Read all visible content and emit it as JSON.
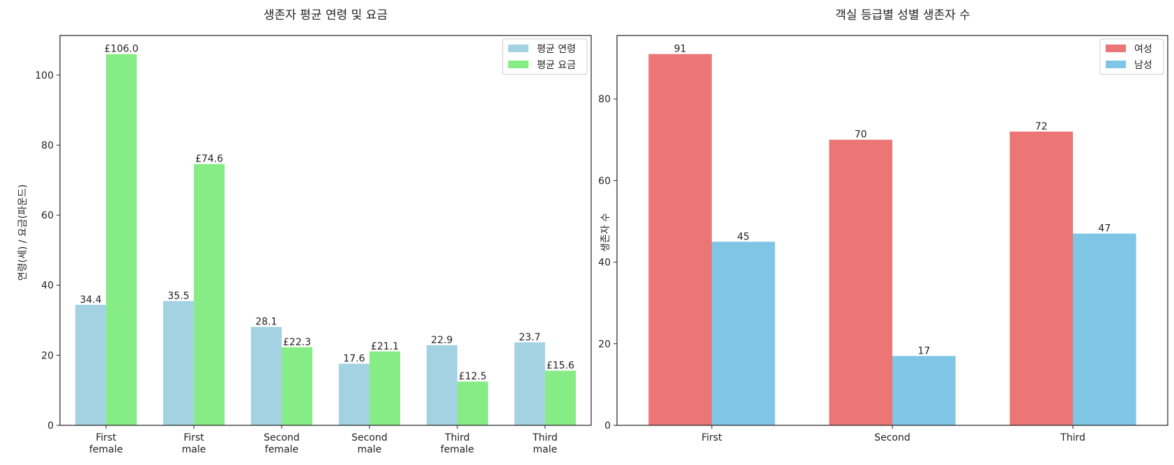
{
  "colors": {
    "age": "#a3d2e2",
    "fare": "#86ec86",
    "female": "#ec7575",
    "male": "#7fc6e6"
  },
  "chart_data": [
    {
      "type": "bar",
      "title": "생존자 평균 연령 및 요금",
      "xlabel": "",
      "ylabel": "연령(세) / 요금(파운드)",
      "ylim": [
        0,
        111.3
      ],
      "yticks": [
        0,
        20,
        40,
        60,
        80,
        100
      ],
      "categories": [
        "First\nfemale",
        "First\nmale",
        "Second\nfemale",
        "Second\nmale",
        "Third\nfemale",
        "Third\nmale"
      ],
      "series": [
        {
          "name": "평균 연령",
          "values": [
            34.4,
            35.5,
            28.1,
            17.6,
            22.9,
            23.7
          ],
          "labels": [
            "34.4",
            "35.5",
            "28.1",
            "17.6",
            "22.9",
            "23.7"
          ]
        },
        {
          "name": "평균 요금",
          "values": [
            106.0,
            74.6,
            22.3,
            21.1,
            12.5,
            15.6
          ],
          "labels": [
            "£106.0",
            "£74.6",
            "£22.3",
            "£21.1",
            "£12.5",
            "£15.6"
          ]
        }
      ],
      "legend": "top-right",
      "grid": false
    },
    {
      "type": "bar",
      "title": "객실 등급별 성별 생존자 수",
      "xlabel": "",
      "ylabel": "생존자 수",
      "ylim": [
        0,
        95.55
      ],
      "yticks": [
        0,
        20,
        40,
        60,
        80
      ],
      "categories": [
        "First",
        "Second",
        "Third"
      ],
      "series": [
        {
          "name": "여성",
          "values": [
            91,
            70,
            72
          ],
          "labels": [
            "91",
            "70",
            "72"
          ]
        },
        {
          "name": "남성",
          "values": [
            45,
            17,
            47
          ],
          "labels": [
            "45",
            "17",
            "47"
          ]
        }
      ],
      "legend": "top-right",
      "grid": false
    }
  ]
}
